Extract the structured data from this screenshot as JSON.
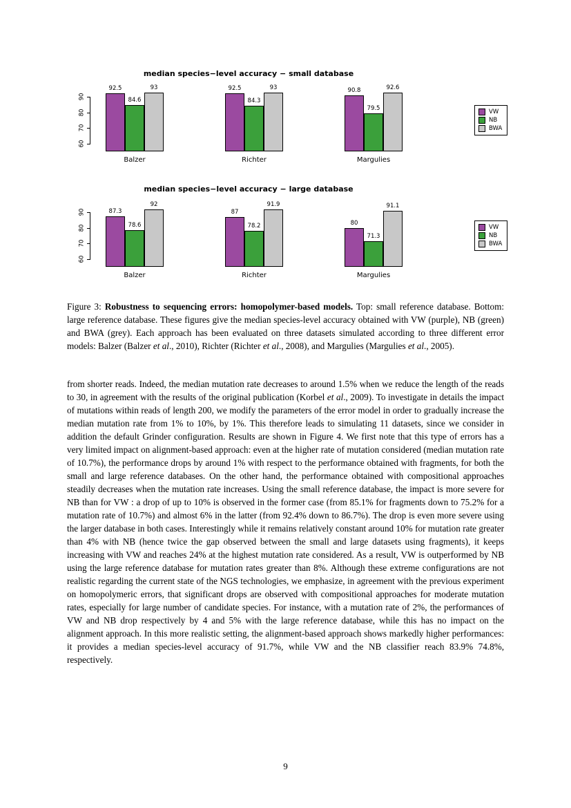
{
  "page": {
    "number": "9"
  },
  "chart_data": [
    {
      "type": "bar",
      "title": "median species−level accuracy − small database",
      "categories": [
        "Balzer",
        "Richter",
        "Margulies"
      ],
      "series": [
        {
          "name": "VW",
          "color": "#9B4AA0",
          "values": [
            92.5,
            92.5,
            90.8
          ]
        },
        {
          "name": "NB",
          "color": "#3BA03B",
          "values": [
            84.6,
            84.3,
            79.5
          ]
        },
        {
          "name": "BWA",
          "color": "#C8C8C8",
          "values": [
            93,
            93,
            92.6
          ]
        }
      ],
      "yticks": [
        60,
        70,
        80,
        90
      ],
      "ymin": 55,
      "ymax": 95,
      "legend_position": "right",
      "grid": false
    },
    {
      "type": "bar",
      "title": "median species−level accuracy − large database",
      "categories": [
        "Balzer",
        "Richter",
        "Margulies"
      ],
      "series": [
        {
          "name": "VW",
          "color": "#9B4AA0",
          "values": [
            87.3,
            87,
            80
          ]
        },
        {
          "name": "NB",
          "color": "#3BA03B",
          "values": [
            78.6,
            78.2,
            71.3
          ]
        },
        {
          "name": "BWA",
          "color": "#C8C8C8",
          "values": [
            92,
            91.9,
            91.1
          ]
        }
      ],
      "yticks": [
        60,
        70,
        80,
        90
      ],
      "ymin": 55,
      "ymax": 95,
      "legend_position": "right",
      "grid": false
    }
  ],
  "caption": {
    "segments": [
      {
        "text": "Figure 3: ",
        "style": "normal"
      },
      {
        "text": "Robustness to sequencing errors: homopolymer-based models.",
        "style": "bold"
      },
      {
        "text": " Top: small reference database. Bottom: large reference database. These figures give the median species-level accuracy obtained with VW (purple), NB (green) and BWA (grey). Each approach has been evaluated on three datasets simulated according to three different error models: Balzer (Balzer ",
        "style": "normal"
      },
      {
        "text": "et al",
        "style": "italic"
      },
      {
        "text": "., 2010), Richter (Richter ",
        "style": "normal"
      },
      {
        "text": "et al",
        "style": "italic"
      },
      {
        "text": "., 2008), and Margulies (Margulies ",
        "style": "normal"
      },
      {
        "text": "et al",
        "style": "italic"
      },
      {
        "text": "., 2005).",
        "style": "normal"
      }
    ]
  },
  "body": {
    "segments": [
      {
        "text": "from shorter reads. Indeed, the median mutation rate decreases to around 1.5% when we reduce the length of the reads to 30, in agreement with the results of the original publication (Korbel ",
        "style": "normal"
      },
      {
        "text": "et al",
        "style": "italic"
      },
      {
        "text": "., 2009). To investigate in details the impact of mutations within reads of length 200, we modify the parameters of the error model in order to gradually increase the median mutation rate from 1% to 10%, by 1%. This therefore leads to simulating 11 datasets, since we consider in addition the default Grinder configuration. Results are shown in Figure 4. We first note that this type of errors has a very limited impact on alignment-based approach: even at the higher rate of mutation considered (median mutation rate of 10.7%), the performance drops by around 1% with respect to the performance obtained with fragments, for both the small and large reference databases. On the other hand, the performance obtained with compositional approaches steadily decreases when the mutation rate increases. Using the small reference database, the impact is more severe for NB than for VW : a drop of up to 10% is observed in the former case (from 85.1% for fragments down to 75.2% for a mutation rate of 10.7%) and almost 6% in the latter (from 92.4% down to 86.7%). The drop is even more severe using the larger database in both cases. Interestingly while it remains relatively constant around 10% for mutation rate greater than 4% with NB (hence twice the gap observed between the small and large datasets using fragments), it keeps increasing with VW and reaches 24% at the highest mutation rate considered. As a result, VW is outperformed by NB using the large reference database for mutation rates greater than 8%. Although these extreme configurations are not realistic regarding the current state of the NGS technologies, we emphasize, in agreement with the previous experiment on homopolymeric errors, that significant drops are observed with compositional approaches for moderate mutation rates, especially for large number of candidate species. For instance, with a mutation rate of 2%, the performances of VW and NB drop respectively by 4 and 5% with the large reference database, while this has no impact on the alignment approach. In this more realistic setting, the alignment-based approach shows markedly higher performances: it provides a median species-level accuracy of 91.7%, while VW and the NB classifier reach 83.9% 74.8%, respectively.",
        "style": "normal"
      }
    ]
  }
}
